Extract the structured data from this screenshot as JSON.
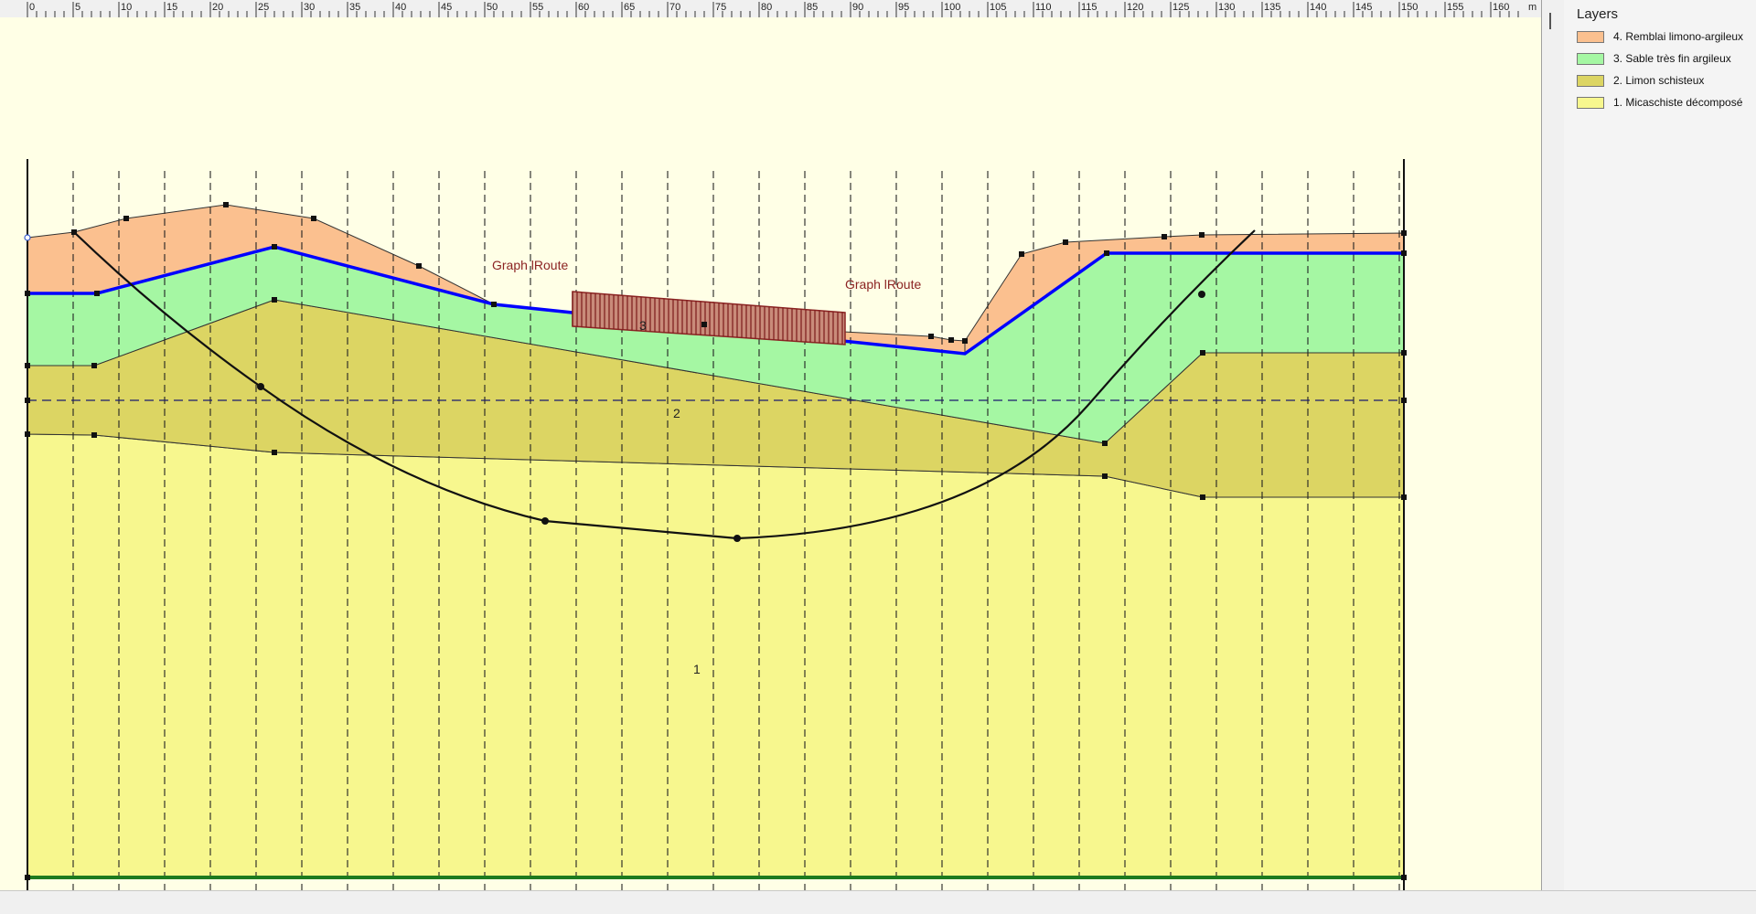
{
  "ruler": {
    "labels": [
      "0",
      "5",
      "10",
      "15",
      "20",
      "25",
      "30",
      "35",
      "40",
      "45",
      "50",
      "55",
      "60",
      "65",
      "70",
      "75",
      "80",
      "85",
      "90",
      "95",
      "100",
      "105",
      "110",
      "115",
      "120",
      "125",
      "130",
      "135",
      "140",
      "145",
      "150",
      "155",
      "160"
    ],
    "unit": "m"
  },
  "legend": {
    "title": "Layers",
    "items": [
      {
        "label": "4. Remblai limono-argileux",
        "color": "#fbc08f"
      },
      {
        "label": "3. Sable très fin argileux",
        "color": "#a5f7a3"
      },
      {
        "label": "2. Limon schisteux",
        "color": "#dcd563"
      },
      {
        "label": "1. Micaschiste décomposé",
        "color": "#f7f78e"
      }
    ]
  },
  "labels": {
    "load_left": "Graph lRoute",
    "load_right": "Graph lRoute",
    "layer_1": "1",
    "layer_2": "2",
    "layer_3": "3"
  },
  "colors": {
    "background": "#ffffe6",
    "water_line": "#0000ff",
    "load": "#8b2323",
    "base_line": "#1e7a1e"
  }
}
